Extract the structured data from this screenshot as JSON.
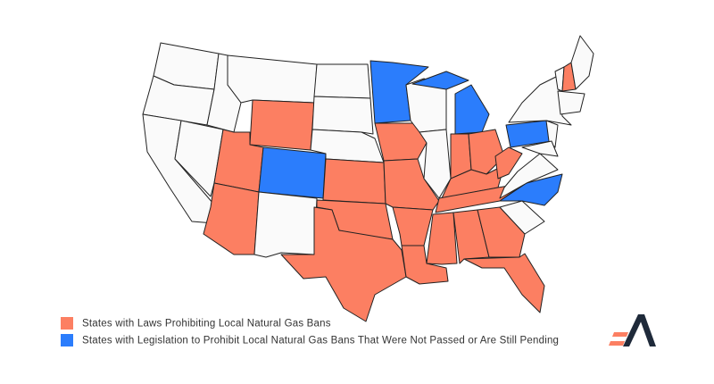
{
  "legend": {
    "items": [
      {
        "label": "States with Laws Prohibiting Local Natural Gas Bans",
        "color": "#fc7f62"
      },
      {
        "label": "States with Legislation to Prohibit Local Natural Gas Bans That Were Not Passed or Are Still Pending",
        "color": "#2b7dfc"
      }
    ]
  }
}
